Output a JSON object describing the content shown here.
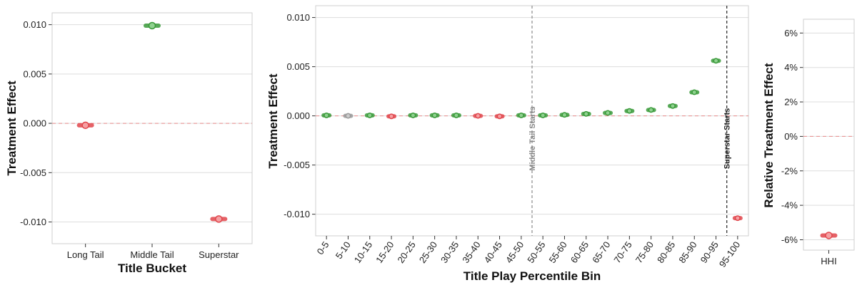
{
  "chart_data": [
    {
      "type": "scatter",
      "xlabel": "Title Bucket",
      "ylabel": "Treatment Effect",
      "ylim": [
        -0.0122,
        0.0112
      ],
      "y_ticks": [
        "-0.010",
        "-0.005",
        "0.000",
        "0.005",
        "0.010"
      ],
      "y_tick_values": [
        -0.01,
        -0.005,
        0.0,
        0.005,
        0.01
      ],
      "categories": [
        "Long Tail",
        "Middle Tail",
        "Superstar"
      ],
      "values": [
        -0.0002,
        0.0099,
        -0.0097
      ],
      "ci_half_width": [
        0.0001,
        0.0001,
        0.0001
      ],
      "point_colors": [
        "#e0454b",
        "#3a9a3a",
        "#e0454b"
      ],
      "reference_line": 0.0,
      "grid": true
    },
    {
      "type": "scatter",
      "xlabel": "Title Play Percentile Bin",
      "ylabel": "Treatment Effect",
      "ylim": [
        -0.0122,
        0.0112
      ],
      "y_ticks": [
        "-0.010",
        "-0.005",
        "0.000",
        "0.005",
        "0.010"
      ],
      "y_tick_values": [
        -0.01,
        -0.005,
        0.0,
        0.005,
        0.01
      ],
      "categories": [
        "0-5",
        "5-10",
        "10-15",
        "15-20",
        "20-25",
        "25-30",
        "30-35",
        "35-40",
        "40-45",
        "45-50",
        "50-55",
        "55-60",
        "60-65",
        "65-70",
        "70-75",
        "75-80",
        "80-85",
        "85-90",
        "90-95",
        "95-100"
      ],
      "values": [
        5e-05,
        0.0,
        5e-05,
        -5e-05,
        5e-05,
        5e-05,
        5e-05,
        0.0,
        -5e-05,
        5e-05,
        5e-05,
        0.0001,
        0.0002,
        0.0003,
        0.0005,
        0.0006,
        0.001,
        0.0024,
        0.0056,
        -0.0104
      ],
      "point_colors": [
        "#3a9a3a",
        "#999999",
        "#3a9a3a",
        "#e0454b",
        "#3a9a3a",
        "#3a9a3a",
        "#3a9a3a",
        "#e0454b",
        "#e0454b",
        "#3a9a3a",
        "#3a9a3a",
        "#3a9a3a",
        "#3a9a3a",
        "#3a9a3a",
        "#3a9a3a",
        "#3a9a3a",
        "#3a9a3a",
        "#3a9a3a",
        "#3a9a3a",
        "#e0454b"
      ],
      "reference_line": 0.0,
      "vertical_markers": [
        {
          "label": "Middle Tail Starts",
          "between": [
            "45-50",
            "50-55"
          ],
          "color": "#888888"
        },
        {
          "label": "Superstar Starts",
          "between": [
            "90-95",
            "95-100"
          ],
          "color": "#222222"
        }
      ],
      "grid": true
    },
    {
      "type": "scatter",
      "xlabel": "",
      "ylabel": "Relative Treatment Effect",
      "ylim": [
        -6.6,
        6.8
      ],
      "y_ticks": [
        "-6%",
        "-4%",
        "-2%",
        "0%",
        "2%",
        "4%",
        "6%"
      ],
      "y_tick_values": [
        -6,
        -4,
        -2,
        0,
        2,
        4,
        6
      ],
      "categories": [
        "HHI"
      ],
      "values": [
        -5.75
      ],
      "point_colors": [
        "#e0454b"
      ],
      "reference_line": 0,
      "grid": true
    }
  ]
}
